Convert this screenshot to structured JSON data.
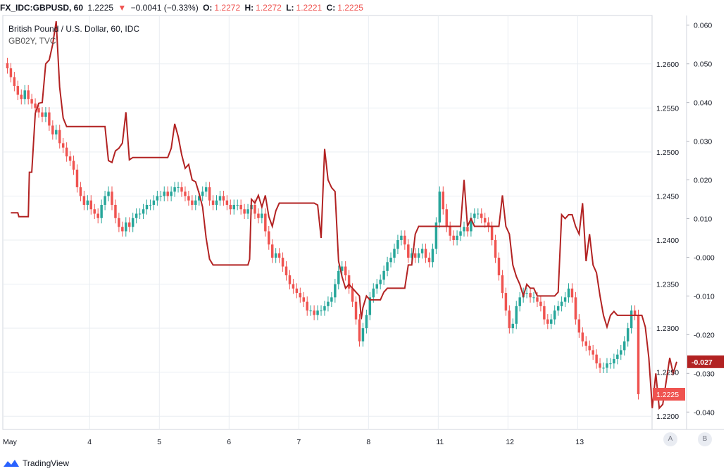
{
  "header": {
    "symbol": "FX_IDC:GBPUSD, 60",
    "last": "1.2225",
    "change": "−0.0041 (−0.33%)",
    "o_label": "O:",
    "o": "1.2272",
    "h_label": "H:",
    "h": "1.2272",
    "l_label": "L:",
    "l": "1.2221",
    "c_label": "C:",
    "c": "1.2225"
  },
  "legend": {
    "title": "British Pound / U.S. Dollar, 60, IDC",
    "overlay": "GB02Y, TVC"
  },
  "footer": {
    "brand": "TradingView",
    "btn_a": "A",
    "btn_b": "B"
  },
  "chart_data": {
    "type": "line",
    "x_tick_labels": [
      "May",
      "4",
      "5",
      "6",
      "7",
      "8",
      "11",
      "12",
      "13"
    ],
    "price_axis": {
      "ticks": [
        "1.2200",
        "1.2250",
        "1.2300",
        "1.2350",
        "1.2400",
        "1.2450",
        "1.2500",
        "1.2550",
        "1.2600"
      ],
      "range": [
        1.2185,
        1.2655
      ],
      "current_label": "1.2225"
    },
    "yield_axis": {
      "ticks": [
        "-0.040",
        "-0.030",
        "-0.020",
        "-0.010",
        "-0.000",
        "0.010",
        "0.020",
        "0.030",
        "0.040",
        "0.050",
        "0.060"
      ],
      "range": [
        -0.0445,
        0.0625
      ],
      "current_label": "-0.027"
    },
    "grid": true,
    "colors": {
      "up": "#26a69a",
      "down": "#ef5350",
      "overlay": "#b22222",
      "grid": "#e9edf2"
    },
    "series": [
      {
        "name": "GBPUSD",
        "style": "candles",
        "close": [
          1.2595,
          1.2585,
          1.2575,
          1.2565,
          1.256,
          1.257,
          1.256,
          1.2555,
          1.255,
          1.2545,
          1.254,
          1.2545,
          1.253,
          1.252,
          1.2525,
          1.251,
          1.2505,
          1.2495,
          1.249,
          1.248,
          1.246,
          1.245,
          1.244,
          1.2445,
          1.2435,
          1.243,
          1.2425,
          1.244,
          1.245,
          1.2455,
          1.244,
          1.2425,
          1.2415,
          1.241,
          1.242,
          1.2415,
          1.2425,
          1.243,
          1.243,
          1.2435,
          1.244,
          1.244,
          1.2445,
          1.245,
          1.245,
          1.2455,
          1.245,
          1.2455,
          1.246,
          1.246,
          1.2455,
          1.245,
          1.2445,
          1.244,
          1.2445,
          1.245,
          1.2455,
          1.246,
          1.2445,
          1.244,
          1.2445,
          1.245,
          1.2445,
          1.244,
          1.2435,
          1.244,
          1.244,
          1.2435,
          1.243,
          1.2435,
          1.244,
          1.243,
          1.2425,
          1.243,
          1.241,
          1.2395,
          1.238,
          1.2385,
          1.238,
          1.237,
          1.236,
          1.235,
          1.2345,
          1.234,
          1.2335,
          1.233,
          1.232,
          1.232,
          1.2315,
          1.232,
          1.232,
          1.2325,
          1.233,
          1.2335,
          1.235,
          1.2365,
          1.237,
          1.236,
          1.2345,
          1.233,
          1.231,
          1.2285,
          1.23,
          1.2315,
          1.2335,
          1.2345,
          1.235,
          1.2355,
          1.2365,
          1.2375,
          1.238,
          1.239,
          1.24,
          1.2405,
          1.2395,
          1.238,
          1.2385,
          1.238,
          1.2385,
          1.239,
          1.238,
          1.2375,
          1.239,
          1.242,
          1.2455,
          1.2435,
          1.2415,
          1.2405,
          1.24,
          1.2405,
          1.241,
          1.2415,
          1.241,
          1.2425,
          1.243,
          1.243,
          1.2425,
          1.242,
          1.2415,
          1.24,
          1.238,
          1.236,
          1.234,
          1.232,
          1.23,
          1.2305,
          1.2325,
          1.2335,
          1.234,
          1.234,
          1.2335,
          1.2335,
          1.233,
          1.2325,
          1.231,
          1.2305,
          1.231,
          1.232,
          1.2325,
          1.233,
          1.2335,
          1.2345,
          1.2335,
          1.231,
          1.2295,
          1.2285,
          1.228,
          1.2275,
          1.227,
          1.226,
          1.2255,
          1.2255,
          1.226,
          1.226,
          1.2265,
          1.227,
          1.2275,
          1.2285,
          1.23,
          1.232,
          1.2315,
          1.2225
        ]
      },
      {
        "name": "GB02Y",
        "style": "line",
        "points": [
          [
            1,
            0.0115
          ],
          [
            3,
            0.0115
          ],
          [
            3.3,
            0.0105
          ],
          [
            4,
            0.0105
          ],
          [
            6,
            0.0105
          ],
          [
            6.3,
            0.022
          ],
          [
            7,
            0.022
          ],
          [
            8,
            0.0372
          ],
          [
            9,
            0.0398
          ],
          [
            10,
            0.04
          ],
          [
            11,
            0.05
          ],
          [
            12,
            0.051
          ],
          [
            13,
            0.055
          ],
          [
            14,
            0.061
          ],
          [
            15,
            0.044
          ],
          [
            16,
            0.036
          ],
          [
            17,
            0.0338
          ],
          [
            18,
            0.0338
          ],
          [
            20,
            0.0338
          ],
          [
            22,
            0.0338
          ],
          [
            26,
            0.0338
          ],
          [
            28,
            0.0338
          ],
          [
            29,
            0.025
          ],
          [
            30,
            0.0245
          ],
          [
            31,
            0.0275
          ],
          [
            32,
            0.0282
          ],
          [
            33,
            0.0295
          ],
          [
            34,
            0.0375
          ],
          [
            35,
            0.0252
          ],
          [
            36,
            0.0258
          ],
          [
            38,
            0.0258
          ],
          [
            40,
            0.0258
          ],
          [
            44,
            0.0258
          ],
          [
            46,
            0.0258
          ],
          [
            47,
            0.0282
          ],
          [
            48,
            0.0345
          ],
          [
            49,
            0.0312
          ],
          [
            50,
            0.0265
          ],
          [
            51,
            0.023
          ],
          [
            52,
            0.024
          ],
          [
            53,
            0.02
          ],
          [
            54,
            0.0195
          ],
          [
            55,
            0.0165
          ],
          [
            56,
            0.013
          ],
          [
            57,
            0.005
          ],
          [
            58,
            -0.0005
          ],
          [
            59,
            -0.002
          ],
          [
            60,
            -0.002
          ],
          [
            64,
            -0.002
          ],
          [
            66,
            -0.002
          ],
          [
            68,
            -0.002
          ],
          [
            69,
            -0.002
          ],
          [
            69.5,
            -0.0005
          ],
          [
            70,
            0.015
          ],
          [
            71,
            0.014
          ],
          [
            72,
            0.016
          ],
          [
            73,
            0.013
          ],
          [
            74,
            0.016
          ],
          [
            75,
            0.0105
          ],
          [
            76,
            0.008
          ],
          [
            77,
            0.012
          ],
          [
            78,
            0.014
          ],
          [
            79,
            0.014
          ],
          [
            80,
            0.014
          ],
          [
            82,
            0.014
          ],
          [
            84,
            0.014
          ],
          [
            86,
            0.014
          ],
          [
            88,
            0.014
          ],
          [
            89,
            0.0135
          ],
          [
            90,
            0.005
          ],
          [
            91,
            0.028
          ],
          [
            92,
            0.02
          ],
          [
            93,
            0.018
          ],
          [
            94,
            0.017
          ],
          [
            95,
            -0.001
          ],
          [
            96,
            -0.005
          ],
          [
            97,
            -0.008
          ],
          [
            98,
            -0.007
          ],
          [
            99,
            -0.008
          ],
          [
            100,
            -0.009
          ],
          [
            101,
            -0.01
          ],
          [
            101.5,
            -0.016
          ],
          [
            102,
            -0.013
          ],
          [
            103,
            -0.01
          ],
          [
            104,
            -0.011
          ],
          [
            105,
            -0.011
          ],
          [
            106,
            -0.011
          ],
          [
            107,
            -0.011
          ],
          [
            108,
            -0.009
          ],
          [
            109,
            -0.008
          ],
          [
            110,
            -0.008
          ],
          [
            112,
            -0.008
          ],
          [
            113,
            -0.008
          ],
          [
            114,
            -0.008
          ],
          [
            115,
            -0.002
          ],
          [
            116,
            -0.002
          ],
          [
            117,
            0.006
          ],
          [
            118,
            0.008
          ],
          [
            119,
            0.008
          ],
          [
            121,
            0.008
          ],
          [
            122,
            0.008
          ],
          [
            124,
            0.008
          ],
          [
            126,
            0.008
          ],
          [
            127,
            0.008
          ],
          [
            128,
            0.008
          ],
          [
            129,
            0.008
          ],
          [
            130,
            0.008
          ],
          [
            131,
            0.02
          ],
          [
            132,
            0.008
          ],
          [
            133,
            0.01
          ],
          [
            134,
            0.008
          ],
          [
            135,
            0.008
          ],
          [
            136,
            0.008
          ],
          [
            137,
            0.008
          ],
          [
            137.5,
            0.008
          ],
          [
            138,
            0.008
          ],
          [
            139,
            0.008
          ],
          [
            140,
            0.008
          ],
          [
            141,
            0.008
          ],
          [
            142,
            0.016
          ],
          [
            143,
            0.008
          ],
          [
            144,
            0.006
          ],
          [
            145,
            -0.002
          ],
          [
            146,
            -0.005
          ],
          [
            147,
            -0.007
          ],
          [
            148,
            -0.01
          ],
          [
            149,
            -0.007
          ],
          [
            150,
            -0.008
          ],
          [
            151,
            -0.008
          ],
          [
            152,
            -0.01
          ],
          [
            153,
            -0.01
          ],
          [
            154,
            -0.01
          ],
          [
            155,
            -0.01
          ],
          [
            156,
            -0.01
          ],
          [
            157,
            -0.01
          ],
          [
            158,
            -0.009
          ],
          [
            159,
            0.011
          ],
          [
            160,
            0.01
          ],
          [
            161,
            0.011
          ],
          [
            162,
            0.011
          ],
          [
            163,
            0.008
          ],
          [
            164,
            0.006
          ],
          [
            165,
            0.014
          ],
          [
            166,
            -0.001
          ],
          [
            167,
            0.006
          ],
          [
            168,
            -0.002
          ],
          [
            169,
            -0.004
          ],
          [
            170,
            -0.01
          ],
          [
            171,
            -0.015
          ],
          [
            172,
            -0.018
          ],
          [
            173,
            -0.015
          ],
          [
            174,
            -0.014
          ],
          [
            175,
            -0.015
          ],
          [
            176,
            -0.015
          ],
          [
            177,
            -0.015
          ],
          [
            178,
            -0.015
          ],
          [
            179,
            -0.015
          ],
          [
            180,
            -0.015
          ],
          [
            181,
            -0.015
          ],
          [
            182,
            -0.015
          ],
          [
            183,
            -0.018
          ],
          [
            184,
            -0.026
          ],
          [
            185,
            -0.039
          ],
          [
            186,
            -0.03
          ],
          [
            187,
            -0.039
          ],
          [
            188,
            -0.038
          ],
          [
            189,
            -0.032
          ],
          [
            190,
            -0.026
          ],
          [
            191,
            -0.03
          ],
          [
            192,
            -0.027
          ]
        ]
      }
    ]
  }
}
